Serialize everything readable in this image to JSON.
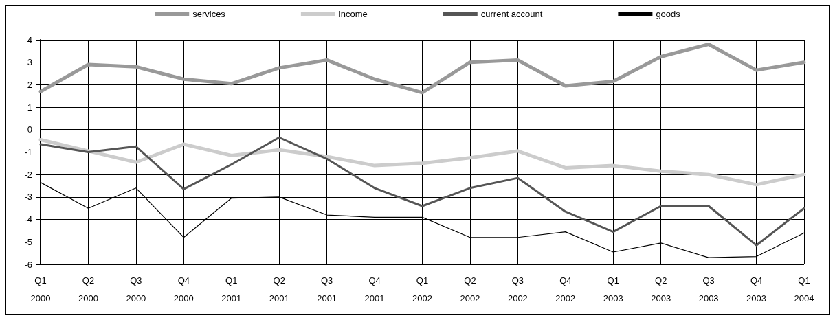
{
  "chart_data": {
    "type": "line",
    "categories": [
      "Q1\n2000",
      "Q2\n2000",
      "Q3\n2000",
      "Q4\n2000",
      "Q1\n2001",
      "Q2\n2001",
      "Q3\n2001",
      "Q4\n2001",
      "Q1\n2002",
      "Q2\n2002",
      "Q3\n2002",
      "Q4\n2002",
      "Q1\n2003",
      "Q2\n2003",
      "Q3\n2003",
      "Q4\n2003",
      "Q1\n2004"
    ],
    "series": [
      {
        "name": "services",
        "color": "#999999",
        "values": [
          1.7,
          2.9,
          2.8,
          2.25,
          2.05,
          2.75,
          3.1,
          2.25,
          1.65,
          3.0,
          3.1,
          1.95,
          2.15,
          3.25,
          3.8,
          2.65,
          3.0
        ]
      },
      {
        "name": "income",
        "color": "#cccccc",
        "values": [
          -0.45,
          -0.95,
          -1.45,
          -0.65,
          -1.15,
          -0.9,
          -1.2,
          -1.6,
          -1.5,
          -1.25,
          -0.95,
          -1.7,
          -1.6,
          -1.85,
          -2.0,
          -2.45,
          -2.0
        ]
      },
      {
        "name": "current account",
        "color": "#555555",
        "values": [
          -0.65,
          -1.0,
          -0.75,
          -2.65,
          -1.55,
          -0.35,
          -1.3,
          -2.6,
          -3.4,
          -2.6,
          -2.15,
          -3.65,
          -4.55,
          -3.4,
          -3.4,
          -5.15,
          -3.5
        ]
      },
      {
        "name": "goods",
        "color": "#000000",
        "values": [
          -2.35,
          -3.5,
          -2.6,
          -4.8,
          -3.05,
          -3.0,
          -3.8,
          -3.9,
          -3.9,
          -4.8,
          -4.8,
          -4.55,
          -5.45,
          -5.05,
          -5.7,
          -5.65,
          -4.6
        ]
      }
    ],
    "ylim": [
      -6,
      4
    ],
    "yticks": [
      -6,
      -5,
      -4,
      -3,
      -2,
      -1,
      0,
      1,
      2,
      3,
      4
    ],
    "grid": true,
    "legend": "top",
    "marker": "none",
    "line_style": "solid"
  }
}
